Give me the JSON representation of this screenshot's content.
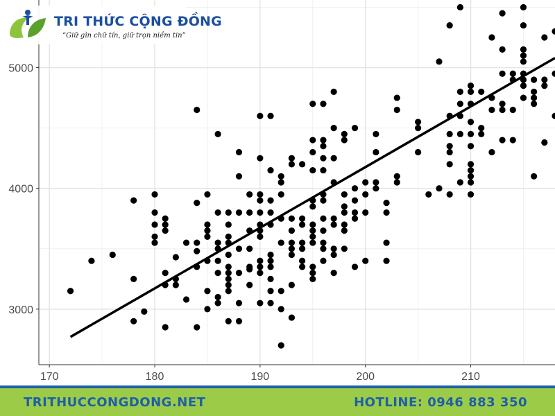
{
  "brand": {
    "name": "TRI THỨC CỘNG ĐỒNG",
    "slogan": "“Giữ gìn chữ tín, giữ trọn niềm tin”",
    "website": "TRITHUCCONGDONG.NET",
    "hotline": "HOTLINE: 0946 883 350",
    "colors": {
      "title": "#1a4fa0",
      "footer_bg": "#9ccb48",
      "footer_text": "#1e5fa8"
    }
  },
  "chart_data": {
    "type": "scatter",
    "title": "",
    "xlabel": "",
    "ylabel": "",
    "xlim": [
      169,
      218
    ],
    "ylim": [
      2540,
      5560
    ],
    "grid": true,
    "x_ticks": [
      170,
      180,
      190,
      200,
      210
    ],
    "y_ticks": [
      3000,
      4000,
      5000
    ],
    "point_color": "#000000",
    "trend_line": {
      "x": [
        172,
        218
      ],
      "y": [
        2770,
        5080
      ],
      "color": "#000000"
    },
    "points": [
      [
        172,
        3150
      ],
      [
        174,
        3400
      ],
      [
        176,
        3450
      ],
      [
        178,
        3900
      ],
      [
        178,
        3250
      ],
      [
        178,
        2900
      ],
      [
        179,
        2980
      ],
      [
        180,
        3950
      ],
      [
        180,
        3800
      ],
      [
        180,
        3700
      ],
      [
        180,
        3600
      ],
      [
        180,
        3550
      ],
      [
        181,
        3750
      ],
      [
        181,
        3700
      ],
      [
        181,
        3650
      ],
      [
        181,
        3300
      ],
      [
        181,
        3200
      ],
      [
        181,
        2850
      ],
      [
        182,
        3430
      ],
      [
        182,
        3250
      ],
      [
        182,
        3200
      ],
      [
        183,
        3550
      ],
      [
        183,
        3080
      ],
      [
        184,
        4650
      ],
      [
        184,
        3880
      ],
      [
        184,
        3550
      ],
      [
        184,
        3480
      ],
      [
        184,
        3350
      ],
      [
        184,
        2850
      ],
      [
        185,
        3950
      ],
      [
        185,
        3700
      ],
      [
        185,
        3650
      ],
      [
        185,
        3600
      ],
      [
        185,
        3400
      ],
      [
        185,
        3150
      ],
      [
        185,
        3000
      ],
      [
        186,
        4450
      ],
      [
        186,
        3800
      ],
      [
        186,
        3550
      ],
      [
        186,
        3500
      ],
      [
        186,
        3400
      ],
      [
        186,
        3300
      ],
      [
        186,
        3100
      ],
      [
        186,
        3050
      ],
      [
        187,
        3800
      ],
      [
        187,
        3700
      ],
      [
        187,
        3600
      ],
      [
        187,
        3550
      ],
      [
        187,
        3450
      ],
      [
        187,
        3350
      ],
      [
        187,
        3300
      ],
      [
        187,
        3250
      ],
      [
        187,
        3200
      ],
      [
        187,
        3150
      ],
      [
        187,
        2900
      ],
      [
        188,
        4300
      ],
      [
        188,
        4100
      ],
      [
        188,
        3800
      ],
      [
        188,
        3500
      ],
      [
        188,
        3300
      ],
      [
        188,
        3050
      ],
      [
        188,
        2900
      ],
      [
        189,
        3950
      ],
      [
        189,
        3800
      ],
      [
        189,
        3650
      ],
      [
        189,
        3500
      ],
      [
        189,
        3350
      ],
      [
        189,
        3330
      ],
      [
        189,
        3200
      ],
      [
        190,
        4600
      ],
      [
        190,
        4250
      ],
      [
        190,
        3950
      ],
      [
        190,
        3900
      ],
      [
        190,
        3800
      ],
      [
        190,
        3700
      ],
      [
        190,
        3650
      ],
      [
        190,
        3600
      ],
      [
        190,
        3400
      ],
      [
        190,
        3350
      ],
      [
        190,
        3300
      ],
      [
        190,
        3050
      ],
      [
        191,
        4600
      ],
      [
        191,
        4150
      ],
      [
        191,
        3900
      ],
      [
        191,
        3800
      ],
      [
        191,
        3700
      ],
      [
        191,
        3450
      ],
      [
        191,
        3400
      ],
      [
        191,
        3350
      ],
      [
        191,
        3250
      ],
      [
        191,
        3150
      ],
      [
        191,
        3050
      ],
      [
        192,
        4100
      ],
      [
        192,
        4050
      ],
      [
        192,
        3950
      ],
      [
        192,
        3750
      ],
      [
        192,
        3550
      ],
      [
        192,
        3150
      ],
      [
        192,
        3000
      ],
      [
        192,
        2700
      ],
      [
        193,
        4250
      ],
      [
        193,
        4200
      ],
      [
        193,
        3750
      ],
      [
        193,
        3650
      ],
      [
        193,
        3550
      ],
      [
        193,
        3500
      ],
      [
        193,
        3450
      ],
      [
        193,
        3200
      ],
      [
        193,
        2930
      ],
      [
        194,
        4200
      ],
      [
        194,
        3750
      ],
      [
        194,
        3700
      ],
      [
        194,
        3550
      ],
      [
        194,
        3500
      ],
      [
        194,
        3400
      ],
      [
        194,
        3350
      ],
      [
        195,
        4700
      ],
      [
        195,
        4400
      ],
      [
        195,
        4300
      ],
      [
        195,
        4150
      ],
      [
        195,
        3900
      ],
      [
        195,
        3850
      ],
      [
        195,
        3700
      ],
      [
        195,
        3650
      ],
      [
        195,
        3600
      ],
      [
        195,
        3550
      ],
      [
        195,
        3350
      ],
      [
        195,
        3300
      ],
      [
        195,
        3250
      ],
      [
        196,
        4700
      ],
      [
        196,
        4400
      ],
      [
        196,
        4350
      ],
      [
        196,
        4250
      ],
      [
        196,
        4150
      ],
      [
        196,
        3950
      ],
      [
        196,
        3900
      ],
      [
        196,
        3750
      ],
      [
        196,
        3650
      ],
      [
        196,
        3550
      ],
      [
        196,
        3500
      ],
      [
        196,
        3400
      ],
      [
        197,
        4800
      ],
      [
        197,
        4500
      ],
      [
        197,
        4250
      ],
      [
        197,
        4050
      ],
      [
        197,
        3750
      ],
      [
        197,
        3700
      ],
      [
        197,
        3500
      ],
      [
        197,
        3450
      ],
      [
        197,
        3300
      ],
      [
        198,
        4450
      ],
      [
        198,
        4400
      ],
      [
        198,
        3950
      ],
      [
        198,
        3850
      ],
      [
        198,
        3800
      ],
      [
        198,
        3700
      ],
      [
        198,
        3650
      ],
      [
        198,
        3500
      ],
      [
        199,
        4500
      ],
      [
        199,
        4000
      ],
      [
        199,
        3900
      ],
      [
        199,
        3800
      ],
      [
        199,
        3750
      ],
      [
        199,
        3350
      ],
      [
        200,
        4050
      ],
      [
        200,
        3950
      ],
      [
        200,
        3800
      ],
      [
        200,
        3400
      ],
      [
        201,
        4450
      ],
      [
        201,
        4300
      ],
      [
        201,
        4050
      ],
      [
        201,
        4000
      ],
      [
        202,
        3880
      ],
      [
        202,
        3800
      ],
      [
        202,
        3550
      ],
      [
        202,
        3400
      ],
      [
        203,
        4750
      ],
      [
        203,
        4650
      ],
      [
        203,
        4100
      ],
      [
        203,
        4050
      ],
      [
        205,
        4550
      ],
      [
        205,
        4500
      ],
      [
        205,
        4300
      ],
      [
        206,
        3950
      ],
      [
        207,
        5050
      ],
      [
        207,
        4000
      ],
      [
        208,
        5350
      ],
      [
        208,
        4600
      ],
      [
        208,
        4450
      ],
      [
        208,
        4350
      ],
      [
        208,
        4300
      ],
      [
        208,
        4200
      ],
      [
        208,
        3950
      ],
      [
        209,
        5500
      ],
      [
        209,
        4800
      ],
      [
        209,
        4700
      ],
      [
        209,
        4600
      ],
      [
        209,
        4450
      ],
      [
        209,
        4050
      ],
      [
        210,
        4850
      ],
      [
        210,
        4800
      ],
      [
        210,
        4700
      ],
      [
        210,
        4550
      ],
      [
        210,
        4450
      ],
      [
        210,
        4350
      ],
      [
        210,
        4200
      ],
      [
        210,
        4150
      ],
      [
        210,
        4100
      ],
      [
        210,
        4050
      ],
      [
        210,
        3950
      ],
      [
        211,
        4800
      ],
      [
        211,
        4500
      ],
      [
        211,
        4450
      ],
      [
        212,
        5250
      ],
      [
        212,
        4750
      ],
      [
        212,
        4650
      ],
      [
        212,
        4300
      ],
      [
        213,
        5450
      ],
      [
        213,
        5150
      ],
      [
        213,
        4950
      ],
      [
        213,
        4700
      ],
      [
        213,
        4650
      ],
      [
        213,
        4400
      ],
      [
        214,
        4950
      ],
      [
        214,
        4900
      ],
      [
        214,
        4650
      ],
      [
        214,
        4400
      ],
      [
        215,
        5500
      ],
      [
        215,
        5350
      ],
      [
        215,
        5150
      ],
      [
        215,
        5100
      ],
      [
        215,
        5050
      ],
      [
        215,
        4950
      ],
      [
        215,
        4900
      ],
      [
        215,
        4850
      ],
      [
        215,
        4750
      ],
      [
        216,
        4900
      ],
      [
        216,
        4800
      ],
      [
        216,
        4750
      ],
      [
        216,
        4700
      ],
      [
        216,
        4100
      ],
      [
        217,
        5250
      ],
      [
        217,
        4900
      ],
      [
        217,
        4850
      ],
      [
        217,
        4380
      ],
      [
        218,
        5300
      ],
      [
        218,
        4950
      ],
      [
        218,
        4600
      ]
    ]
  }
}
